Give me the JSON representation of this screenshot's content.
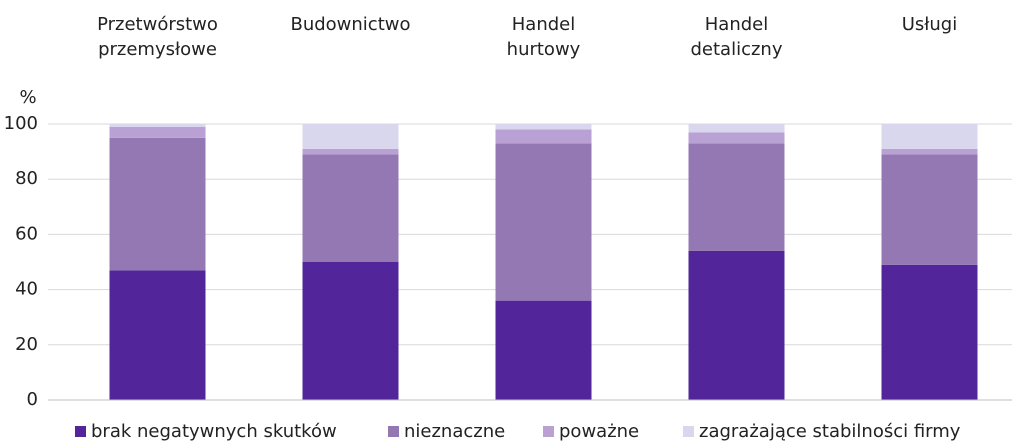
{
  "chart_data": {
    "type": "stacked_bar",
    "y_label": "%",
    "categories": [
      "Przetwórstwo przemysłowe",
      "Budownictwo",
      "Handel hurtowy",
      "Handel detaliczny",
      "Usługi"
    ],
    "series": [
      {
        "name": "brak negatywnych skutków",
        "color": "#52259a",
        "values": [
          47,
          50,
          36,
          54,
          49
        ]
      },
      {
        "name": "nieznaczne",
        "color": "#9478b4",
        "values": [
          48,
          39,
          57,
          39,
          40
        ]
      },
      {
        "name": "poważne",
        "color": "#b9a2d3",
        "values": [
          4,
          2,
          5,
          4,
          2
        ]
      },
      {
        "name": "zagrażające stabilności firmy",
        "color": "#d9d7ee",
        "values": [
          1,
          9,
          2,
          3,
          9
        ]
      }
    ],
    "ylim": [
      0,
      100
    ],
    "yticks": [
      0,
      20,
      40,
      60,
      80,
      100
    ],
    "grid": true,
    "legend": "bottom"
  }
}
